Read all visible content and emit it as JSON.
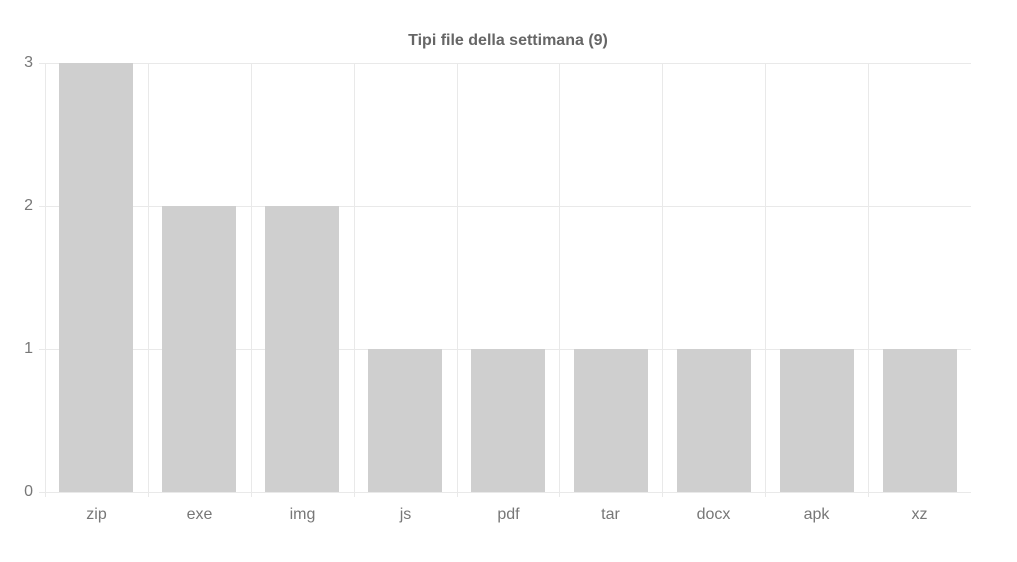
{
  "chart_data": {
    "type": "bar",
    "title": "Tipi file della settimana (9)",
    "categories": [
      "zip",
      "exe",
      "img",
      "js",
      "pdf",
      "tar",
      "docx",
      "apk",
      "xz"
    ],
    "values": [
      3,
      2,
      2,
      1,
      1,
      1,
      1,
      1,
      1
    ],
    "xlabel": "",
    "ylabel": "",
    "ylim": [
      0,
      3
    ],
    "yticks": [
      0,
      1,
      2,
      3
    ],
    "grid": true,
    "legend": false,
    "colors": {
      "bar_fill": "#cfcfcf",
      "grid_line": "#e9e9e9",
      "tick_label": "#777777",
      "title": "#666666",
      "background": "#ffffff"
    }
  }
}
